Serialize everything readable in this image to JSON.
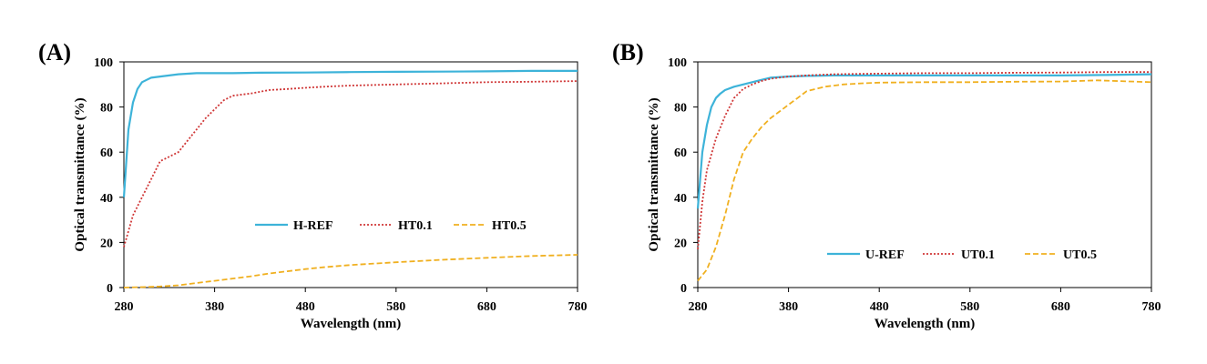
{
  "chart_data": [
    {
      "type": "line",
      "panel_label": "(A)",
      "xlabel": "Wavelength (nm)",
      "ylabel": "Optical transmittance (%)",
      "xlim": [
        280,
        780
      ],
      "ylim": [
        0,
        100
      ],
      "xticks": [
        280,
        380,
        480,
        580,
        680,
        780
      ],
      "yticks": [
        0,
        20,
        40,
        60,
        80,
        100
      ],
      "grid": false,
      "legend_position": "lower-right",
      "series": [
        {
          "name": "H-REF",
          "color": "#3db3d9",
          "style": "solid",
          "x": [
            280,
            285,
            290,
            295,
            300,
            305,
            310,
            320,
            330,
            340,
            360,
            380,
            400,
            430,
            480,
            530,
            580,
            630,
            680,
            730,
            780
          ],
          "y": [
            40,
            70,
            82,
            88,
            91,
            92,
            93,
            93.5,
            94,
            94.5,
            95,
            95,
            95,
            95.2,
            95.3,
            95.5,
            95.6,
            95.7,
            95.8,
            96,
            96
          ]
        },
        {
          "name": "HT0.1",
          "color": "#d03838",
          "style": "dotted",
          "x": [
            280,
            290,
            300,
            310,
            320,
            330,
            340,
            350,
            360,
            370,
            380,
            390,
            400,
            420,
            440,
            460,
            480,
            500,
            530,
            580,
            630,
            680,
            730,
            780
          ],
          "y": [
            18,
            32,
            40,
            48,
            56,
            58,
            60,
            65,
            70,
            75,
            79,
            83,
            85,
            86,
            87.5,
            88,
            88.5,
            89,
            89.5,
            90,
            90.5,
            91,
            91.2,
            91.5
          ]
        },
        {
          "name": "HT0.5",
          "color": "#f0b020",
          "style": "dashed",
          "x": [
            280,
            300,
            320,
            340,
            360,
            380,
            400,
            420,
            440,
            460,
            480,
            500,
            530,
            580,
            630,
            680,
            730,
            780
          ],
          "y": [
            0,
            0.2,
            0.5,
            1,
            2,
            3,
            4,
            5,
            6.2,
            7.2,
            8.2,
            9,
            10,
            11.2,
            12.3,
            13.2,
            14,
            14.5
          ]
        }
      ]
    },
    {
      "type": "line",
      "panel_label": "(B)",
      "xlabel": "Wavelength (nm)",
      "ylabel": "Optical transmittance (%)",
      "xlim": [
        280,
        780
      ],
      "ylim": [
        0,
        100
      ],
      "xticks": [
        280,
        380,
        480,
        580,
        680,
        780
      ],
      "yticks": [
        0,
        20,
        40,
        60,
        80,
        100
      ],
      "grid": false,
      "legend_position": "lower-right",
      "series": [
        {
          "name": "U-REF",
          "color": "#3db3d9",
          "style": "solid",
          "x": [
            280,
            285,
            290,
            295,
            300,
            305,
            310,
            320,
            330,
            340,
            350,
            360,
            380,
            400,
            430,
            480,
            530,
            580,
            630,
            680,
            730,
            780
          ],
          "y": [
            35,
            60,
            72,
            80,
            84,
            86,
            87.5,
            89,
            90,
            91,
            92,
            93,
            93.5,
            93.8,
            94,
            94,
            94,
            94,
            94,
            94,
            94.2,
            94.5
          ]
        },
        {
          "name": "UT0.1",
          "color": "#d03838",
          "style": "dotted",
          "x": [
            280,
            285,
            290,
            300,
            310,
            320,
            330,
            340,
            350,
            360,
            380,
            400,
            430,
            480,
            530,
            580,
            630,
            680,
            730,
            780
          ],
          "y": [
            17,
            38,
            52,
            66,
            76,
            84,
            88,
            90,
            91.5,
            92.5,
            93.5,
            94,
            94.5,
            94.8,
            95,
            95,
            95.2,
            95.3,
            95.5,
            95.5
          ]
        },
        {
          "name": "UT0.5",
          "color": "#f0b020",
          "style": "dashed",
          "x": [
            280,
            290,
            300,
            310,
            320,
            330,
            340,
            350,
            360,
            370,
            380,
            390,
            400,
            420,
            440,
            460,
            480,
            530,
            580,
            630,
            680,
            720,
            780
          ],
          "y": [
            3,
            8,
            18,
            32,
            48,
            60,
            66,
            71,
            75,
            78,
            81,
            84,
            87,
            89,
            90,
            90.5,
            90.8,
            91,
            91,
            91.2,
            91.3,
            91.8,
            91
          ]
        }
      ]
    }
  ]
}
